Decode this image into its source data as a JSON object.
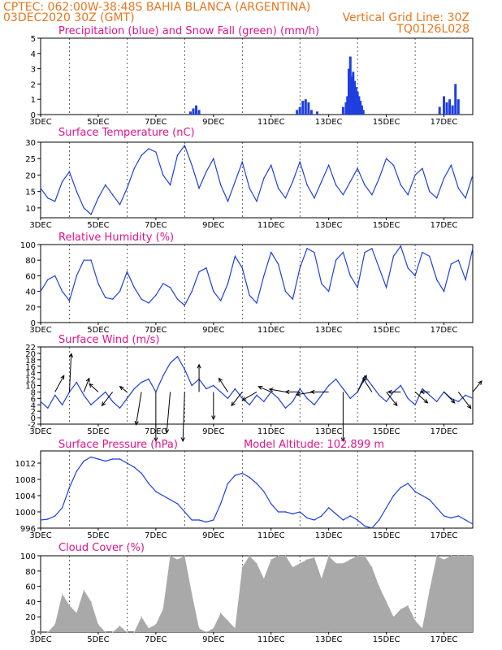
{
  "header": {
    "line1": "CPTEC:   062:00W-38:48S   BAHIA BLANCA (ARGENTINA)",
    "line2": "03DEC2020 30Z (GMT)",
    "grid_note": "Vertical Grid Line: 30Z",
    "code": "TQ0126L028"
  },
  "colors": {
    "header": "#e8761c",
    "title": "#e0148c",
    "precip": "#1f3fe0",
    "snow": "#2aa02a",
    "line": "#1f3fe0",
    "cloud": "#a9a9a9",
    "arrow": "#000000"
  },
  "x_axis": {
    "labels": [
      "3DEC",
      "5DEC",
      "7DEC",
      "9DEC",
      "11DEC",
      "13DEC",
      "15DEC",
      "17DEC"
    ],
    "label_days": [
      0,
      2,
      4,
      6,
      8,
      10,
      12,
      14
    ],
    "grid_days": [
      1,
      3,
      5,
      7,
      9,
      11,
      13
    ],
    "span_days": 15
  },
  "chart_data": [
    {
      "id": "precip",
      "type": "bar",
      "title": "Precipitation (blue) and Snow Fall (green) (mm/h)",
      "ylim": [
        0,
        5
      ],
      "yticks": [
        0,
        1,
        2,
        3,
        4,
        5
      ],
      "grid": true,
      "series": [
        {
          "name": "Precipitation",
          "x": [
            5.2,
            5.3,
            5.4,
            5.5,
            8.9,
            9.0,
            9.1,
            9.2,
            9.3,
            9.4,
            9.6,
            10.5,
            10.6,
            10.65,
            10.7,
            10.75,
            10.8,
            10.85,
            10.9,
            10.95,
            11.0,
            11.05,
            11.1,
            11.15,
            11.2,
            13.85,
            14.0,
            14.1,
            14.2,
            14.3,
            14.4,
            14.5
          ],
          "values": [
            0.2,
            0.4,
            0.6,
            0.3,
            0.3,
            0.5,
            0.9,
            1.0,
            0.8,
            0.3,
            0.2,
            0.5,
            0.8,
            1.2,
            3.0,
            3.8,
            2.5,
            2.8,
            2.2,
            1.8,
            1.5,
            1.2,
            0.9,
            0.6,
            0.3,
            0.5,
            1.2,
            0.8,
            1.0,
            0.6,
            2.0,
            1.0
          ]
        },
        {
          "name": "Snow Fall",
          "x": [],
          "values": []
        }
      ]
    },
    {
      "id": "temp",
      "type": "line",
      "title": "Surface Temperature (nC)",
      "ylim": [
        7,
        30
      ],
      "yticks": [
        10,
        15,
        20,
        25,
        30
      ],
      "grid": true,
      "x": [
        0,
        0.25,
        0.5,
        0.75,
        1,
        1.25,
        1.5,
        1.75,
        2,
        2.25,
        2.5,
        2.75,
        3,
        3.25,
        3.5,
        3.75,
        4,
        4.25,
        4.5,
        4.75,
        5,
        5.25,
        5.5,
        5.75,
        6,
        6.25,
        6.5,
        6.75,
        7,
        7.25,
        7.5,
        7.75,
        8,
        8.25,
        8.5,
        8.75,
        9,
        9.25,
        9.5,
        9.75,
        10,
        10.25,
        10.5,
        10.75,
        11,
        11.25,
        11.5,
        11.75,
        12,
        12.25,
        12.5,
        12.75,
        13,
        13.25,
        13.5,
        13.75,
        14,
        14.25,
        14.5,
        14.75,
        15
      ],
      "values": [
        16,
        13,
        12,
        18,
        21,
        15,
        10,
        8,
        13,
        17,
        14,
        11,
        16,
        22,
        26,
        28,
        27,
        20,
        17,
        26,
        29,
        23,
        16,
        21,
        25,
        17,
        12,
        18,
        24,
        16,
        12,
        19,
        23,
        16,
        13,
        18,
        24,
        17,
        13,
        18,
        23,
        17,
        14,
        18,
        22,
        17,
        14,
        19,
        25,
        23,
        17,
        14,
        20,
        22,
        15,
        13,
        19,
        23,
        16,
        13,
        20
      ]
    },
    {
      "id": "rh",
      "type": "line",
      "title": "Relative Humidity (%)",
      "ylim": [
        0,
        100
      ],
      "yticks": [
        0,
        20,
        40,
        60,
        80,
        100
      ],
      "grid": true,
      "x": [
        0,
        0.25,
        0.5,
        0.75,
        1,
        1.25,
        1.5,
        1.75,
        2,
        2.25,
        2.5,
        2.75,
        3,
        3.25,
        3.5,
        3.75,
        4,
        4.25,
        4.5,
        4.75,
        5,
        5.25,
        5.5,
        5.75,
        6,
        6.25,
        6.5,
        6.75,
        7,
        7.25,
        7.5,
        7.75,
        8,
        8.25,
        8.5,
        8.75,
        9,
        9.25,
        9.5,
        9.75,
        10,
        10.25,
        10.5,
        10.75,
        11,
        11.25,
        11.5,
        11.75,
        12,
        12.25,
        12.5,
        12.75,
        13,
        13.25,
        13.5,
        13.75,
        14,
        14.25,
        14.5,
        14.75,
        15
      ],
      "values": [
        40,
        55,
        60,
        40,
        28,
        60,
        80,
        80,
        50,
        32,
        30,
        40,
        65,
        45,
        30,
        25,
        35,
        50,
        45,
        30,
        22,
        40,
        65,
        70,
        40,
        28,
        50,
        85,
        70,
        35,
        25,
        60,
        90,
        75,
        40,
        30,
        70,
        95,
        90,
        50,
        40,
        80,
        90,
        60,
        45,
        90,
        95,
        70,
        45,
        85,
        98,
        70,
        60,
        90,
        85,
        55,
        40,
        75,
        80,
        55,
        95
      ]
    },
    {
      "id": "wind",
      "type": "line",
      "title": "Surface Wind (m/s)",
      "ylim": [
        -2,
        22
      ],
      "yticks": [
        -2,
        0,
        2,
        4,
        6,
        8,
        10,
        12,
        14,
        16,
        18,
        20,
        22
      ],
      "grid": true,
      "x": [
        0,
        0.25,
        0.5,
        0.75,
        1,
        1.25,
        1.5,
        1.75,
        2,
        2.25,
        2.5,
        2.75,
        3,
        3.25,
        3.5,
        3.75,
        4,
        4.25,
        4.5,
        4.75,
        5,
        5.25,
        5.5,
        5.75,
        6,
        6.25,
        6.5,
        6.75,
        7,
        7.25,
        7.5,
        7.75,
        8,
        8.25,
        8.5,
        8.75,
        9,
        9.25,
        9.5,
        9.75,
        10,
        10.25,
        10.5,
        10.75,
        11,
        11.25,
        11.5,
        11.75,
        12,
        12.25,
        12.5,
        12.75,
        13,
        13.25,
        13.5,
        13.75,
        14,
        14.25,
        14.5,
        14.75,
        15
      ],
      "values": [
        5,
        3,
        7,
        4,
        8,
        11,
        7,
        4,
        6,
        8,
        5,
        3,
        6,
        9,
        11,
        12,
        8,
        13,
        17,
        19,
        15,
        10,
        12,
        9,
        10,
        8,
        6,
        9,
        6,
        4,
        7,
        5,
        8,
        6,
        3,
        5,
        9,
        6,
        4,
        7,
        10,
        12,
        9,
        6,
        8,
        13,
        10,
        7,
        5,
        8,
        10,
        6,
        4,
        9,
        7,
        5,
        8,
        6,
        5,
        7,
        6
      ],
      "vectors": {
        "x": [
          0.5,
          1.0,
          1.5,
          2.0,
          2.5,
          3.0,
          3.5,
          4.0,
          4.5,
          5.0,
          5.5,
          6.0,
          6.5,
          7.0,
          7.5,
          8.0,
          8.5,
          9.0,
          9.5,
          10.0,
          10.5,
          11.0,
          11.5,
          12.0,
          12.5,
          13.0,
          13.5,
          14.0,
          14.5,
          15.0
        ],
        "u": [
          5,
          1,
          3,
          -5,
          -6,
          -4,
          -3,
          0,
          -2,
          -1,
          0,
          0,
          -5,
          -6,
          -8,
          -7,
          -9,
          -8,
          -10,
          -10,
          0,
          5,
          -5,
          6,
          -7,
          7,
          -5,
          6,
          7,
          5
        ],
        "v": [
          6,
          14,
          5,
          3,
          -5,
          2,
          -12,
          -18,
          -15,
          -18,
          10,
          -10,
          5,
          -5,
          -3,
          2,
          1,
          0,
          -1,
          0,
          -18,
          6,
          5,
          -5,
          0,
          -4,
          0,
          -4,
          -6,
          4
        ]
      }
    },
    {
      "id": "pressure",
      "type": "line",
      "title": "Surface Pressure (hPa)",
      "annotation": "Model Altitude: 102.899 m",
      "ylim": [
        996,
        1015
      ],
      "yticks": [
        996,
        1000,
        1004,
        1008,
        1012
      ],
      "grid": true,
      "x": [
        0,
        0.25,
        0.5,
        0.75,
        1,
        1.25,
        1.5,
        1.75,
        2,
        2.25,
        2.5,
        2.75,
        3,
        3.25,
        3.5,
        3.75,
        4,
        4.25,
        4.5,
        4.75,
        5,
        5.25,
        5.5,
        5.75,
        6,
        6.25,
        6.5,
        6.75,
        7,
        7.25,
        7.5,
        7.75,
        8,
        8.25,
        8.5,
        8.75,
        9,
        9.25,
        9.5,
        9.75,
        10,
        10.25,
        10.5,
        10.75,
        11,
        11.25,
        11.5,
        11.75,
        12,
        12.25,
        12.5,
        12.75,
        13,
        13.25,
        13.5,
        13.75,
        14,
        14.25,
        14.5,
        14.75,
        15
      ],
      "values": [
        998,
        998.2,
        999,
        1001,
        1006,
        1010,
        1012.5,
        1013.5,
        1013,
        1012.5,
        1013,
        1013,
        1012,
        1011,
        1009.5,
        1007,
        1005,
        1004,
        1003,
        1002,
        1000,
        998,
        998,
        997.5,
        998,
        1002,
        1007,
        1009,
        1009.5,
        1008.5,
        1007,
        1005,
        1002,
        1000,
        1000,
        999.5,
        1000,
        998.5,
        998,
        999,
        1001,
        999.5,
        998,
        999,
        998,
        996.5,
        996,
        998,
        1001,
        1004,
        1006,
        1007,
        1005,
        1004,
        1003,
        1001,
        999,
        998.5,
        999,
        998,
        997
      ]
    },
    {
      "id": "cloud",
      "type": "area",
      "title": "Cloud Cover (%)",
      "ylim": [
        0,
        100
      ],
      "yticks": [
        0,
        20,
        40,
        60,
        80,
        100
      ],
      "grid": true,
      "x": [
        0,
        0.25,
        0.5,
        0.75,
        1,
        1.25,
        1.5,
        1.75,
        2,
        2.25,
        2.5,
        2.75,
        3,
        3.25,
        3.5,
        3.75,
        4,
        4.25,
        4.5,
        4.75,
        5,
        5.25,
        5.5,
        5.75,
        6,
        6.25,
        6.5,
        6.75,
        7,
        7.25,
        7.5,
        7.75,
        8,
        8.25,
        8.5,
        8.75,
        9,
        9.25,
        9.5,
        9.75,
        10,
        10.25,
        10.5,
        10.75,
        11,
        11.25,
        11.5,
        11.75,
        12,
        12.25,
        12.5,
        12.75,
        13,
        13.25,
        13.5,
        13.75,
        14,
        14.25,
        14.5,
        14.75,
        15
      ],
      "values": [
        0,
        0,
        10,
        50,
        35,
        25,
        55,
        40,
        10,
        0,
        0,
        8,
        0,
        0,
        20,
        5,
        10,
        30,
        100,
        95,
        100,
        50,
        5,
        0,
        5,
        25,
        15,
        5,
        85,
        100,
        90,
        70,
        95,
        100,
        100,
        85,
        90,
        95,
        98,
        70,
        100,
        90,
        90,
        95,
        100,
        100,
        85,
        60,
        40,
        20,
        30,
        35,
        15,
        5,
        55,
        100,
        95,
        100,
        100,
        100,
        100
      ]
    }
  ]
}
